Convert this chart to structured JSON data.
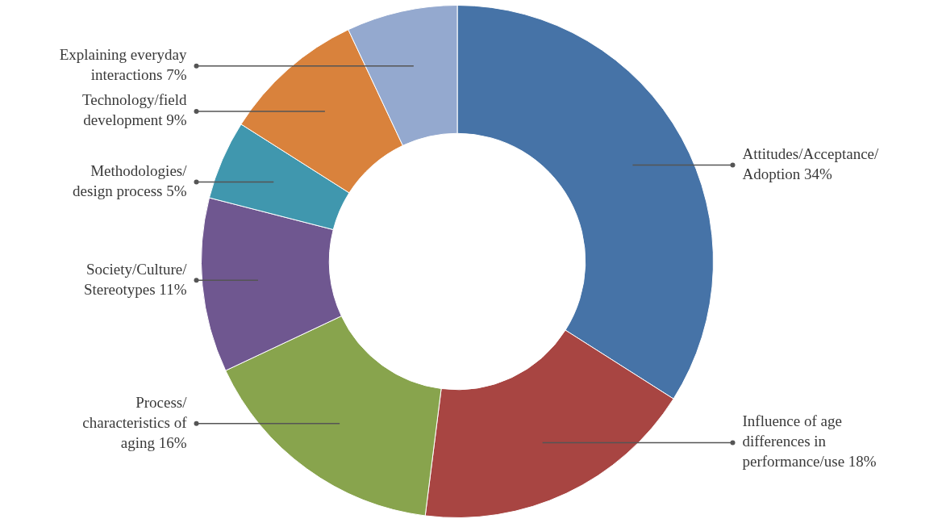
{
  "chart_data": {
    "type": "donut",
    "categories": [
      "Attitudes/Acceptance/Adoption",
      "Influence of age differences in performance/use",
      "Process/characteristics of aging",
      "Society/Culture/Stereotypes",
      "Methodologies/design process",
      "Technology/field development",
      "Explaining everyday interactions"
    ],
    "values": [
      34,
      18,
      16,
      11,
      5,
      9,
      7
    ],
    "value_labels": [
      "34%",
      "18%",
      "16%",
      "11%",
      "5%",
      "9%",
      "7%"
    ],
    "colors": [
      "#4673a7",
      "#a84542",
      "#88a44d",
      "#6f5790",
      "#4097ae",
      "#d9823c",
      "#94a9cf"
    ],
    "legend": false
  }
}
